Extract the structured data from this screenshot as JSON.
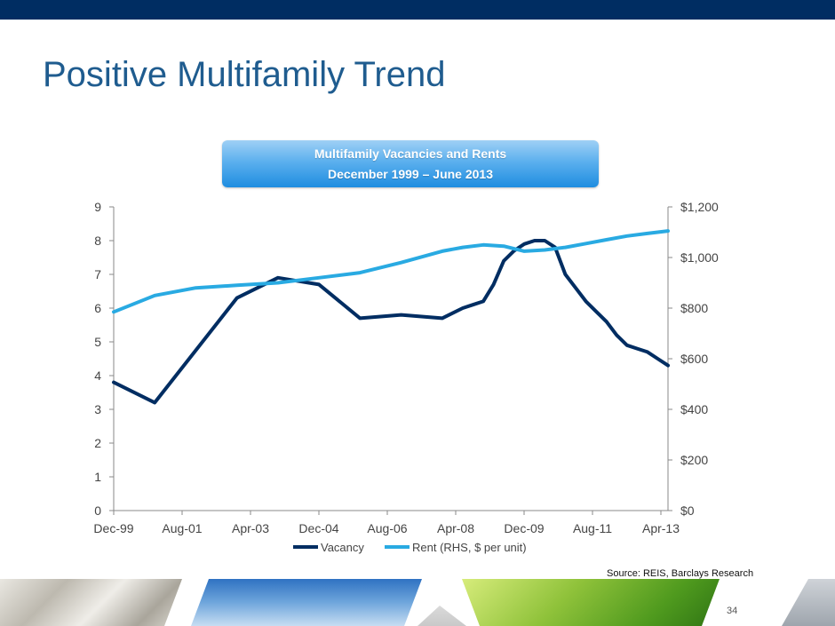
{
  "slide": {
    "title": "Positive Multifamily Trend",
    "page_number": "34",
    "source": "Source: REIS, Barclays Research"
  },
  "colors": {
    "top_bar": "#002d62",
    "title": "#1f5c8f",
    "vacancy": "#002d62",
    "rent": "#29aae2"
  },
  "chart_data": {
    "type": "line",
    "title": "Multifamily Vacancies and Rents",
    "subtitle": "December 1999 – June 2013",
    "x_tick_labels": [
      "Dec-99",
      "Aug-01",
      "Apr-03",
      "Dec-04",
      "Aug-06",
      "Apr-08",
      "Dec-09",
      "Aug-11",
      "Apr-13"
    ],
    "x_range": [
      0,
      162
    ],
    "left_axis": {
      "ylim": [
        0,
        9
      ],
      "ticks": [
        "0",
        "1",
        "2",
        "3",
        "4",
        "5",
        "6",
        "7",
        "8",
        "9"
      ]
    },
    "right_axis": {
      "ylim": [
        0,
        1200
      ],
      "ticks": [
        "$0",
        "$200",
        "$400",
        "$600",
        "$800",
        "$1,000",
        "$1,200"
      ]
    },
    "series": [
      {
        "name": "Vacancy",
        "axis": "left",
        "x": [
          0,
          12,
          36,
          48,
          60,
          72,
          84,
          96,
          102,
          105,
          108,
          111,
          114,
          117,
          120,
          123,
          126,
          129,
          132,
          135,
          138,
          141,
          144,
          147,
          150,
          153,
          156,
          159,
          162
        ],
        "values": [
          3.8,
          3.2,
          6.3,
          6.9,
          6.7,
          5.7,
          5.8,
          5.7,
          6.0,
          6.1,
          6.2,
          6.7,
          7.4,
          7.7,
          7.9,
          8.0,
          8.0,
          7.8,
          7.0,
          6.6,
          6.2,
          5.9,
          5.6,
          5.2,
          4.9,
          4.8,
          4.7,
          4.5,
          4.3
        ]
      },
      {
        "name": "Rent (RHS, $ per unit)",
        "axis": "right",
        "x": [
          0,
          12,
          24,
          36,
          48,
          60,
          72,
          84,
          96,
          102,
          108,
          114,
          120,
          126,
          132,
          138,
          144,
          150,
          156,
          162
        ],
        "values": [
          785,
          850,
          880,
          890,
          900,
          920,
          940,
          980,
          1025,
          1040,
          1050,
          1045,
          1025,
          1030,
          1040,
          1055,
          1070,
          1085,
          1095,
          1105
        ]
      }
    ]
  }
}
